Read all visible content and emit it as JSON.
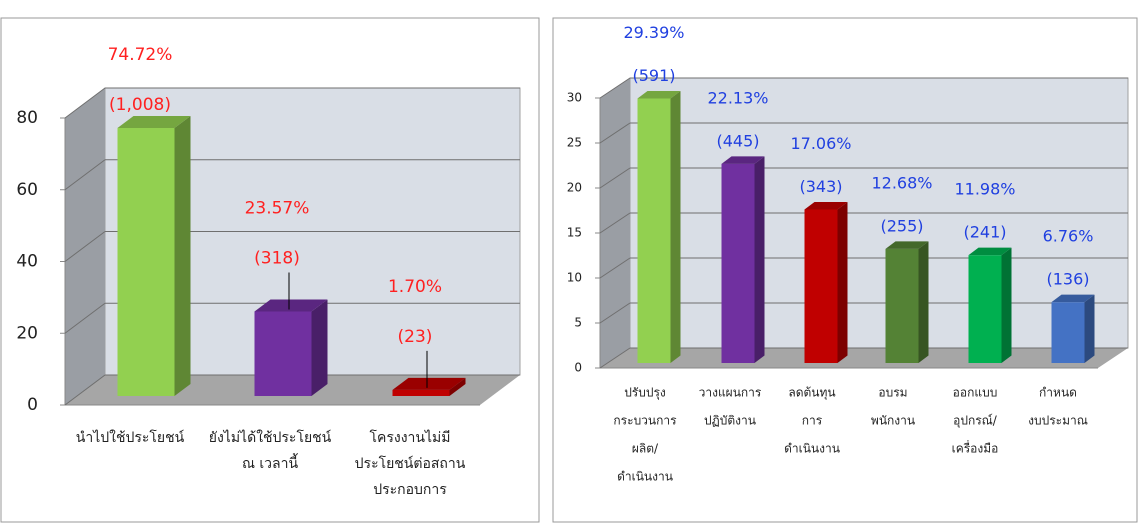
{
  "chart_data": [
    {
      "type": "bar3d",
      "categories": [
        [
          "นำไปใช้ประโยชน์"
        ],
        [
          "ยังไม่ได้ใช้ประโยชน์",
          "ณ เวลานี้"
        ],
        [
          "โครงงานไม่มี",
          "ประโยชน์ต่อสถาน",
          "ประกอบการ"
        ]
      ],
      "values": [
        74.72,
        23.57,
        1.7
      ],
      "value_labels": [
        "74.72%",
        "23.57%",
        "1.70%"
      ],
      "count_labels": [
        "(1,008)",
        "(318)",
        "(23)"
      ],
      "colors": [
        "#92d050",
        "#7030a0",
        "#c00000"
      ],
      "label_color": "#ff2020",
      "ylim": [
        0,
        80
      ],
      "yticks": [
        0,
        20,
        40,
        60,
        80
      ],
      "grid": true
    },
    {
      "type": "bar3d",
      "categories": [
        [
          "ปรับปรุง",
          "กระบวนการ",
          "ผลิต/",
          "ดำเนินงาน"
        ],
        [
          "วางแผนการ",
          "ปฏิบัติงาน"
        ],
        [
          "ลดต้นทุน",
          "การ",
          "ดำเนินงาน"
        ],
        [
          "อบรม",
          "พนักงาน"
        ],
        [
          "ออกแบบ",
          "อุปกรณ์/",
          "เครื่องมือ"
        ],
        [
          "กำหนด",
          "งบประมาณ"
        ]
      ],
      "values": [
        29.39,
        22.13,
        17.06,
        12.68,
        11.98,
        6.76
      ],
      "value_labels": [
        "29.39%",
        "22.13%",
        "17.06%",
        "12.68%",
        "11.98%",
        "6.76%"
      ],
      "count_labels": [
        "(591)",
        "(445)",
        "(343)",
        "(255)",
        "(241)",
        "(136)"
      ],
      "colors": [
        "#92d050",
        "#7030a0",
        "#c00000",
        "#548235",
        "#00b050",
        "#4472c4"
      ],
      "label_color": "#2040e0",
      "ylim": [
        0,
        30
      ],
      "yticks": [
        0,
        5,
        10,
        15,
        20,
        25,
        30
      ],
      "grid": true
    }
  ]
}
